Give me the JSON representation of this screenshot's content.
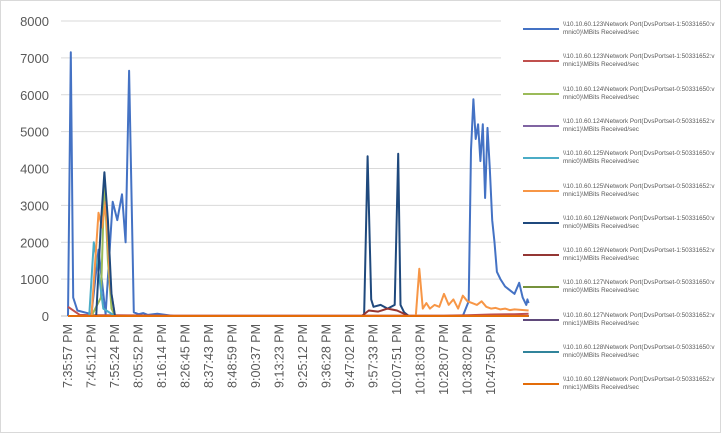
{
  "chart_data": {
    "type": "line",
    "title": "",
    "xlabel": "",
    "ylabel": "",
    "ylim": [
      0,
      8000
    ],
    "y_ticks": [
      0,
      1000,
      2000,
      3000,
      4000,
      5000,
      6000,
      7000,
      8000
    ],
    "x_ticks": [
      "7:35:57 PM",
      "7:45:12 PM",
      "7:55:24 PM",
      "8:05:52 PM",
      "8:16:14 PM",
      "8:26:45 PM",
      "8:37:43 PM",
      "8:48:59 PM",
      "9:00:37 PM",
      "9:13:23 PM",
      "9:25:12 PM",
      "9:36:28 PM",
      "9:47:02 PM",
      "9:57:33 PM",
      "10:07:51 PM",
      "10:18:03 PM",
      "10:28:07 PM",
      "10:38:02 PM",
      "10:47:50 PM"
    ],
    "grid": "horizontal",
    "legend_position": "right",
    "series": [
      {
        "name": "\\\\10.10.60.123\\Network Port(DvsPortset-1:50331650:vmnic0)\\MBits Received/sec",
        "color": "#4472c4",
        "x": [
          0.0,
          0.12,
          0.22,
          0.4,
          1.0,
          1.3,
          1.6,
          1.9,
          2.1,
          2.3,
          2.45,
          2.6,
          2.8,
          3.0,
          3.2,
          3.4,
          3.8,
          4.5,
          5.0,
          15.5,
          16.5,
          16.8,
          17.05,
          17.15,
          17.25,
          17.35,
          17.45,
          17.55,
          17.65,
          17.75,
          17.85,
          17.95,
          18.05,
          18.15,
          18.25,
          18.4,
          18.6,
          18.8,
          19.0,
          19.2,
          19.35,
          19.5,
          19.55,
          19.6
        ],
        "y": [
          0,
          7150,
          500,
          150,
          50,
          1800,
          50,
          3100,
          2600,
          3300,
          2000,
          6650,
          100,
          50,
          80,
          30,
          60,
          0,
          0,
          0,
          0,
          0,
          400,
          4500,
          5880,
          4800,
          5200,
          4200,
          5200,
          3200,
          5100,
          4000,
          2600,
          2000,
          1200,
          1000,
          800,
          700,
          600,
          900,
          500,
          300,
          450,
          350
        ]
      },
      {
        "name": "\\\\10.10.60.123\\Network Port(DvsPortset-1:50331652:vmnic1)\\MBits Received/sec",
        "color": "#c0504d",
        "x": [
          0.0,
          0.5,
          1.0,
          2.0,
          3.0,
          4.0,
          5.0,
          8.0,
          12.0,
          15.0,
          16.0,
          17.0,
          18.0,
          19.0,
          19.6
        ],
        "y": [
          250,
          30,
          20,
          20,
          15,
          10,
          10,
          10,
          10,
          10,
          10,
          20,
          40,
          50,
          60
        ]
      },
      {
        "name": "\\\\10.10.60.124\\Network Port(DvsPortset-0:50331650:vmnic0)\\MBits Received/sec",
        "color": "#9bbb59",
        "x": [
          0.0,
          1.0,
          1.4,
          1.55,
          1.7,
          1.85,
          2.0,
          3.0,
          19.6
        ],
        "y": [
          0,
          0,
          500,
          3650,
          1500,
          200,
          0,
          0,
          0
        ]
      },
      {
        "name": "\\\\10.10.60.124\\Network Port(DvsPortset-0:50331652:vmnic1)\\MBits Received/sec",
        "color": "#8064a2",
        "x": [
          0.0,
          19.6
        ],
        "y": [
          0,
          0
        ]
      },
      {
        "name": "\\\\10.10.60.125\\Network Port(DvsPortset-0:50331650:vmnic0)\\MBits Received/sec",
        "color": "#4bacc6",
        "x": [
          0.0,
          0.9,
          1.1,
          1.3,
          1.5,
          2.0,
          19.6
        ],
        "y": [
          0,
          0,
          2000,
          1200,
          200,
          0,
          0
        ]
      },
      {
        "name": "\\\\10.10.60.125\\Network Port(DvsPortset-0:50331652:vmnic1)\\MBits Received/sec",
        "color": "#f79646",
        "x": [
          0.0,
          1.0,
          1.3,
          1.45,
          1.6,
          1.8,
          2.0,
          14.8,
          14.95,
          15.1,
          15.25,
          15.4,
          15.6,
          15.8,
          16.0,
          16.2,
          16.4,
          16.6,
          16.8,
          17.0,
          17.2,
          17.4,
          17.6,
          17.8,
          18.0,
          18.2,
          18.4,
          18.6,
          18.8,
          19.0,
          19.2,
          19.4,
          19.6
        ],
        "y": [
          0,
          0,
          2800,
          2400,
          3100,
          800,
          0,
          0,
          1280,
          200,
          350,
          200,
          300,
          250,
          600,
          300,
          450,
          200,
          550,
          400,
          350,
          300,
          400,
          250,
          200,
          220,
          180,
          200,
          160,
          180,
          170,
          160,
          150
        ]
      },
      {
        "name": "\\\\10.10.60.126\\Network Port(DvsPortset-1:50331650:vmnic0)\\MBits Received/sec",
        "color": "#1f497d",
        "x": [
          0.0,
          1.2,
          1.4,
          1.55,
          1.7,
          1.85,
          2.0,
          3.0,
          12.0,
          12.6,
          12.75,
          12.9,
          13.0,
          13.3,
          13.6,
          13.9,
          14.05,
          14.15,
          14.3,
          14.5,
          15.0,
          19.6
        ],
        "y": [
          0,
          0,
          2500,
          3900,
          2600,
          600,
          0,
          0,
          0,
          0,
          4330,
          450,
          250,
          300,
          200,
          300,
          4400,
          300,
          100,
          0,
          0,
          0
        ]
      },
      {
        "name": "\\\\10.10.60.126\\Network Port(DvsPortset-1:50331652:vmnic1)\\MBits Received/sec",
        "color": "#943634",
        "x": [
          0.0,
          12.5,
          12.8,
          13.2,
          13.6,
          14.0,
          14.5,
          19.6
        ],
        "y": [
          0,
          0,
          150,
          120,
          200,
          150,
          0,
          0
        ]
      },
      {
        "name": "\\\\10.10.60.127\\Network Port(DvsPortset-0:50331650:vmnic0)\\MBits Received/sec",
        "color": "#76923c",
        "x": [
          0.0,
          19.6
        ],
        "y": [
          0,
          0
        ]
      },
      {
        "name": "\\\\10.10.60.127\\Network Port(DvsPortset-0:50331652:vmnic1)\\MBits Received/sec",
        "color": "#5f497a",
        "x": [
          0.0,
          19.6
        ],
        "y": [
          0,
          0
        ]
      },
      {
        "name": "\\\\10.10.60.128\\Network Port(DvsPortset-0:50331650:vmnic0)\\MBits Received/sec",
        "color": "#31849b",
        "x": [
          0.0,
          19.6
        ],
        "y": [
          0,
          0
        ]
      },
      {
        "name": "\\\\10.10.60.128\\Network Port(DvsPortset-0:50331652:vmnic1)\\MBits Received/sec",
        "color": "#e36c09",
        "x": [
          0.0,
          19.6
        ],
        "y": [
          0,
          0
        ]
      }
    ]
  }
}
